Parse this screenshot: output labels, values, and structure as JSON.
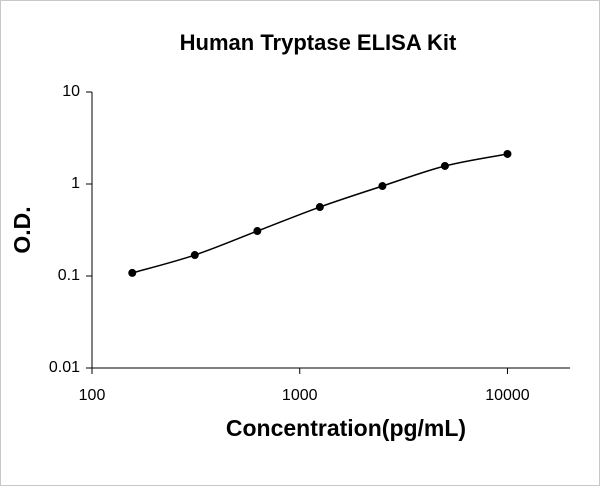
{
  "chart_data": {
    "type": "scatter",
    "title": "Human Tryptase ELISA Kit",
    "x_label": "Concentration(pg/mL)",
    "y_label": "O.D.",
    "series": [
      {
        "color": "#000000",
        "x": [
          156.25,
          312.5,
          625,
          1250,
          2500,
          5000,
          10000
        ],
        "values": [
          0.108,
          0.169,
          0.308,
          0.562,
          0.95,
          1.57,
          2.12
        ]
      }
    ],
    "line": true,
    "x_log": true,
    "y_log": true,
    "xlim": [
      100,
      20000
    ],
    "xticks": [
      100,
      1000,
      10000
    ],
    "ylim": [
      0.01,
      10
    ],
    "yticks": [
      0.01,
      0.1,
      1,
      10
    ],
    "grid": false
  }
}
